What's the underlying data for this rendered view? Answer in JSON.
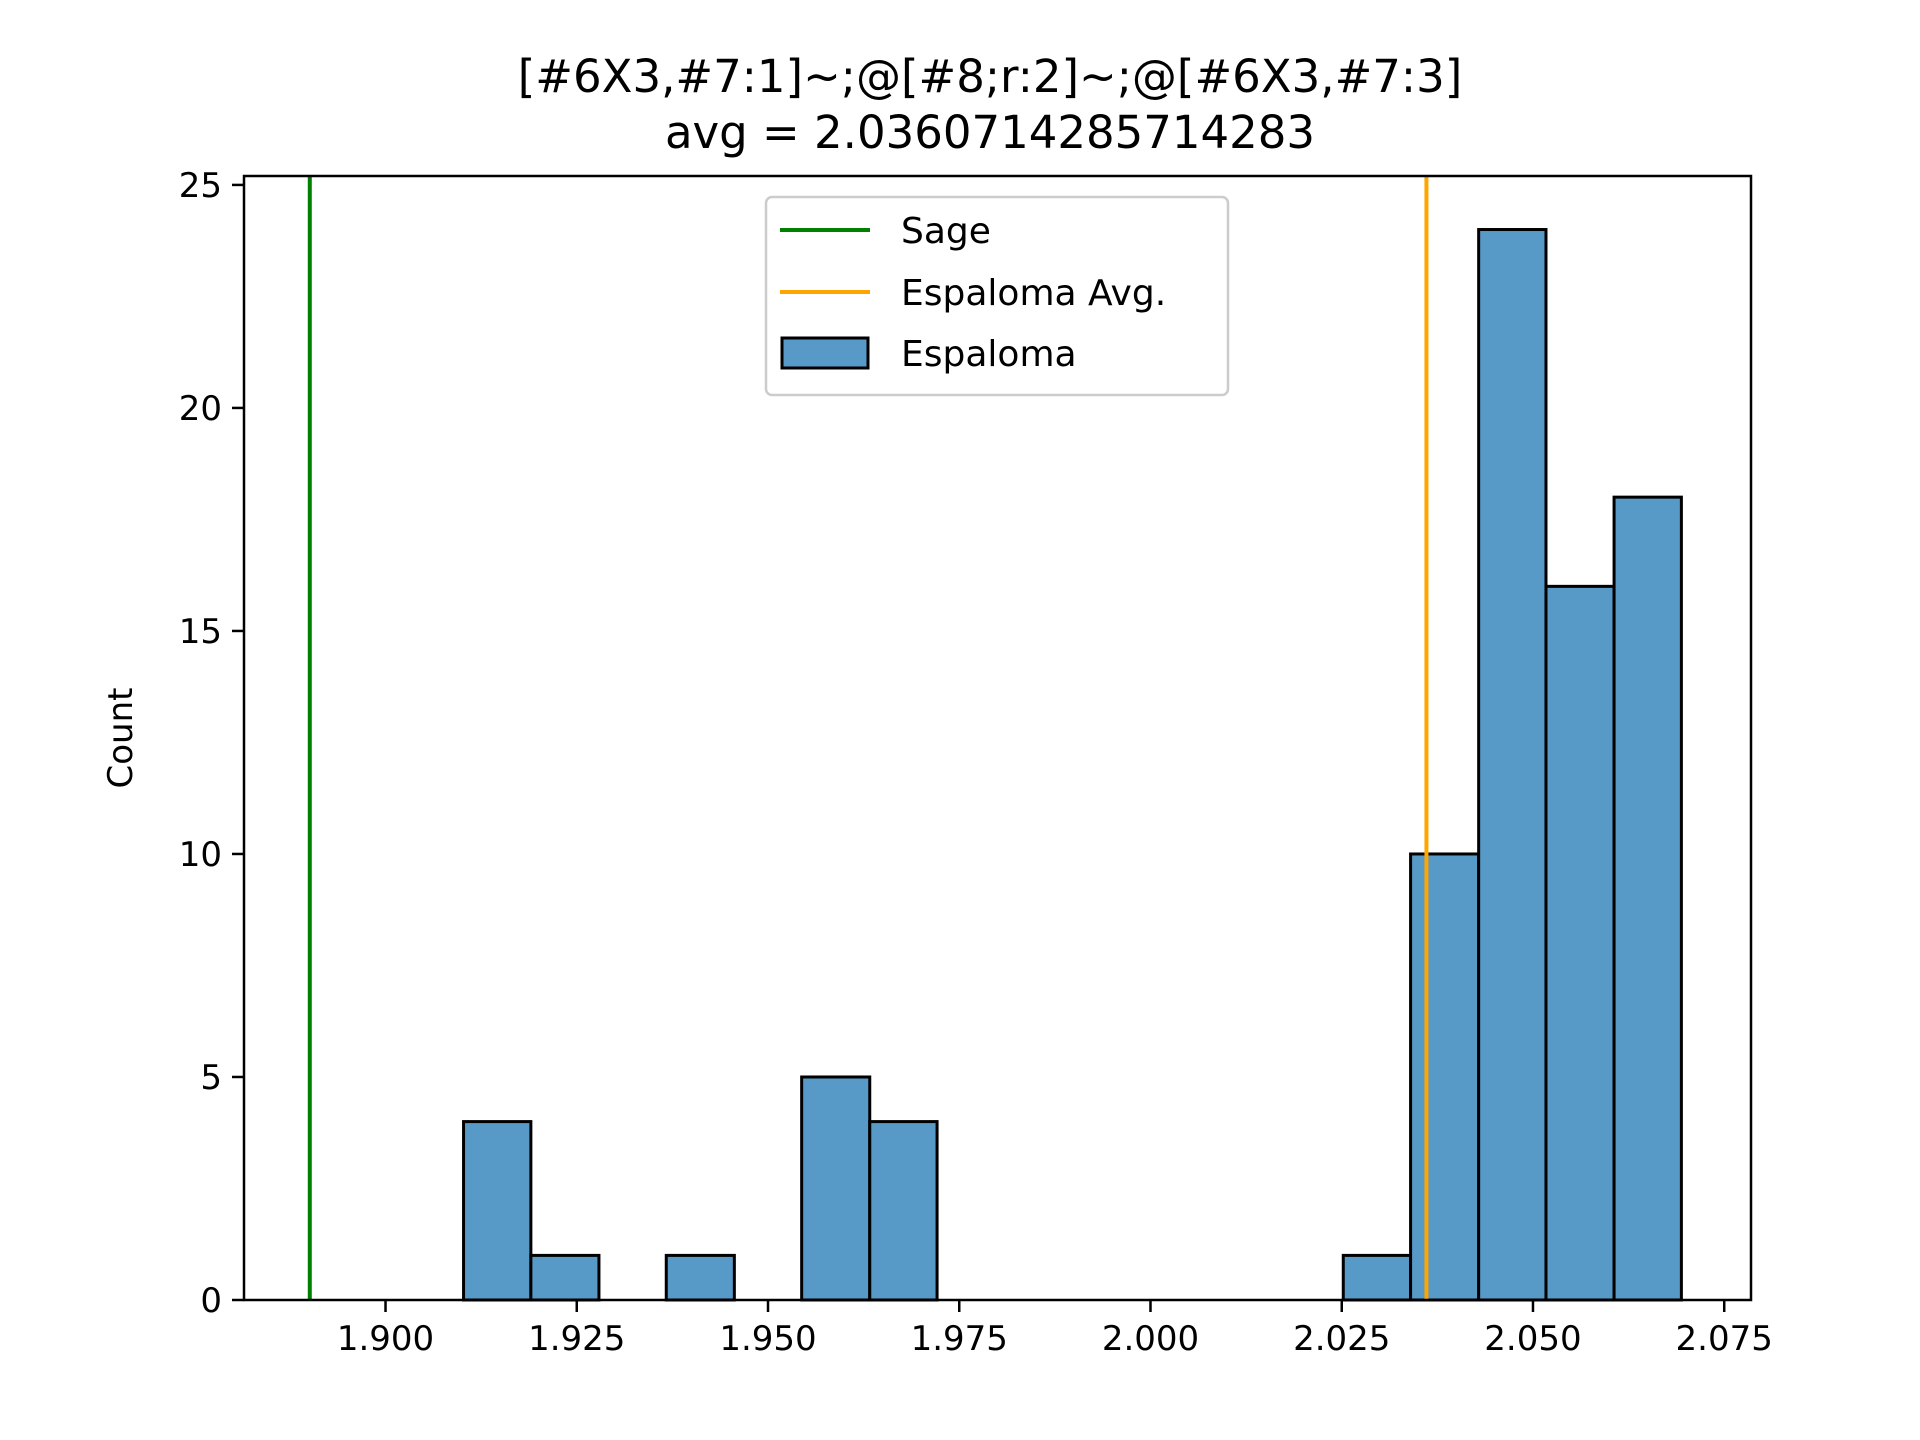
{
  "chart_data": {
    "type": "bar",
    "title_lines": [
      "[#6X3,#7:1]~;@[#8;r:2]~;@[#6X3,#7:3]",
      "avg = 2.0360714285714283"
    ],
    "xlabel": "",
    "ylabel": "Count",
    "xlim": [
      1.8815,
      2.0785
    ],
    "ylim": [
      0,
      25.2
    ],
    "x_ticks": [
      1.9,
      1.925,
      1.95,
      1.975,
      2.0,
      2.025,
      2.05,
      2.075
    ],
    "x_tick_labels": [
      "1.900",
      "1.925",
      "1.950",
      "1.975",
      "2.000",
      "2.025",
      "2.050",
      "2.075"
    ],
    "y_ticks": [
      0,
      5,
      10,
      15,
      20,
      25
    ],
    "y_tick_labels": [
      "0",
      "5",
      "10",
      "15",
      "20",
      "25"
    ],
    "grid": false,
    "legend_position": "upper-center",
    "bins": {
      "name": "Espaloma",
      "color": "#5799c7",
      "edges": [
        1.9102,
        1.919,
        1.9279,
        1.9367,
        1.9456,
        1.9544,
        1.9633,
        1.9721,
        1.981,
        1.9898,
        1.9986,
        2.0075,
        2.0163,
        2.0252,
        2.034,
        2.0429,
        2.0517,
        2.0606,
        2.0694
      ],
      "counts": [
        4,
        1,
        0,
        1,
        0,
        5,
        4,
        0,
        0,
        0,
        0,
        0,
        0,
        1,
        10,
        24,
        16,
        18
      ]
    },
    "vlines": [
      {
        "name": "Sage",
        "x": 1.8901,
        "color": "#008000"
      },
      {
        "name": "Espaloma Avg.",
        "x": 2.0360714285714283,
        "color": "#ffa500"
      }
    ]
  }
}
